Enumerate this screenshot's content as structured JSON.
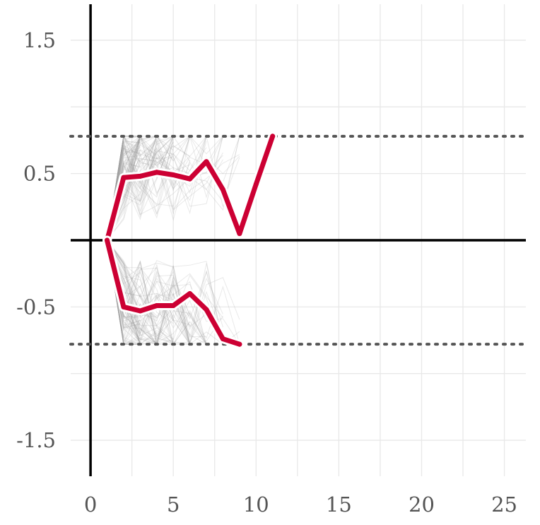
{
  "chart_data": {
    "type": "line",
    "title": "",
    "xlabel": "",
    "ylabel": "",
    "xlim": [
      -1.2,
      26.3
    ],
    "ylim": [
      -1.77,
      1.77
    ],
    "x_ticks": [
      0,
      5,
      10,
      15,
      20,
      25
    ],
    "y_ticks": [
      -1.5,
      -0.5,
      0.5,
      1.5
    ],
    "y_tick_labels": [
      "-1.5",
      "-0.5",
      "0.5",
      "1.5"
    ],
    "grid": true,
    "reference_lines": {
      "zero_x": 0,
      "zero_y": 0,
      "upper_bound": 0.78,
      "lower_bound": -0.78
    },
    "background_paths": {
      "description_free_count": 180,
      "x_range": [
        1,
        9
      ],
      "color": "#999999"
    },
    "series": [
      {
        "x": [
          1,
          2,
          3,
          4,
          5,
          6,
          7,
          8,
          9,
          10,
          11
        ],
        "values": [
          0.0,
          0.47,
          0.48,
          0.51,
          0.49,
          0.46,
          0.59,
          0.38,
          0.05,
          0.42,
          0.78
        ]
      },
      {
        "x": [
          1,
          2,
          3,
          4,
          5,
          6,
          7,
          8,
          9
        ],
        "values": [
          0.0,
          -0.5,
          -0.53,
          -0.49,
          -0.49,
          -0.4,
          -0.52,
          -0.74,
          -0.78
        ]
      }
    ],
    "colors": {
      "highlight": "#cc0033",
      "highlight_outline": "#ffffff",
      "background_path": "#999999",
      "grid": "#e8e8e8",
      "axis": "#000000",
      "bound_line": "#555555",
      "tick_text": "#555555"
    }
  }
}
